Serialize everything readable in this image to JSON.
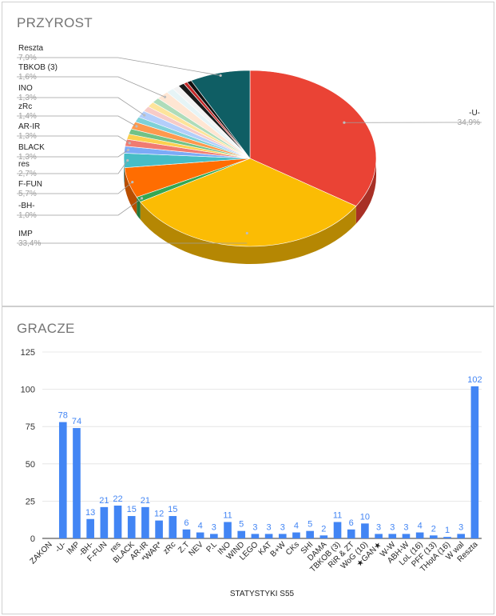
{
  "chart_data": [
    {
      "type": "pie",
      "title": "PRZYROST",
      "style": "3d",
      "slices": [
        {
          "label": "-U-",
          "value": "34,9%",
          "pct": 34.9,
          "color": "#ea4335"
        },
        {
          "label": "IMP",
          "value": "33,4%",
          "pct": 33.4,
          "color": "#fbbc04"
        },
        {
          "label": "-BH-",
          "value": "1,0%",
          "pct": 1.0,
          "color": "#34a853"
        },
        {
          "label": "F-FUN",
          "value": "5,7%",
          "pct": 5.7,
          "color": "#ff6d01"
        },
        {
          "label": "res",
          "value": "2,7%",
          "pct": 2.7,
          "color": "#46bdc6"
        },
        {
          "label": "BLACK",
          "value": "1,3%",
          "pct": 1.3,
          "color": "#7baaf7"
        },
        {
          "label": "AR-IR",
          "value": "1,3%",
          "pct": 1.3,
          "color": "#f07b72"
        },
        {
          "label": "",
          "pct": 1.0,
          "color": "#fcd04f"
        },
        {
          "label": "",
          "pct": 1.0,
          "color": "#71c287"
        },
        {
          "label": "zRc",
          "value": "1,4%",
          "pct": 1.4,
          "color": "#ff994d"
        },
        {
          "label": "",
          "pct": 1.0,
          "color": "#7ed1d7"
        },
        {
          "label": "INO",
          "value": "1,3%",
          "pct": 1.3,
          "color": "#b3cefb"
        },
        {
          "label": "",
          "pct": 1.0,
          "color": "#f7cbc7"
        },
        {
          "label": "",
          "pct": 1.0,
          "color": "#fde49b"
        },
        {
          "label": "",
          "pct": 1.0,
          "color": "#aedcba"
        },
        {
          "label": "TBKOB (3)",
          "value": "1,6%",
          "pct": 1.6,
          "color": "#ffe6d3"
        },
        {
          "label": "",
          "pct": 1.0,
          "color": "#e6f4f6"
        },
        {
          "label": "",
          "pct": 0.9,
          "color": "#f3f3f3"
        },
        {
          "label": "",
          "pct": 0.8,
          "color": "#1a1a1a"
        },
        {
          "label": "",
          "pct": 0.5,
          "color": "#c62828"
        },
        {
          "label": "",
          "pct": 0.6,
          "color": "#111111"
        },
        {
          "label": "Reszta",
          "value": "7,9%",
          "pct": 7.9,
          "color": "#0f5e64"
        }
      ]
    },
    {
      "type": "bar",
      "title": "GRACZE",
      "xlabel": "STATYSTYKI S55",
      "ylim": [
        0,
        125
      ],
      "yticks": [
        0,
        25,
        50,
        75,
        100,
        125
      ],
      "color": "#4285f4",
      "categories": [
        "ZAKON",
        "-U-",
        "IMP",
        "-BH-",
        "F-FUN",
        "res",
        "BLACK",
        "AR-IR",
        "*WAR*",
        "zRc",
        "Z.T",
        "NEV",
        "P.L",
        "INO",
        "WIND",
        "LEGO",
        "KAT",
        "B+W",
        "CKs",
        "SHI",
        "DAMA",
        "TBKOB (3)",
        "RiR & ZT",
        "WoG (10)",
        "★GAN★",
        "W-W",
        "ABH-W",
        "LoL (16)",
        "PFF (13)",
        "THotA (16)",
        "W wal",
        "Reszta"
      ],
      "values": [
        null,
        78,
        74,
        13,
        21,
        22,
        15,
        21,
        12,
        15,
        6,
        4,
        3,
        11,
        5,
        3,
        3,
        3,
        4,
        5,
        2,
        11,
        6,
        10,
        3,
        3,
        3,
        4,
        2,
        1,
        3,
        102
      ]
    }
  ]
}
